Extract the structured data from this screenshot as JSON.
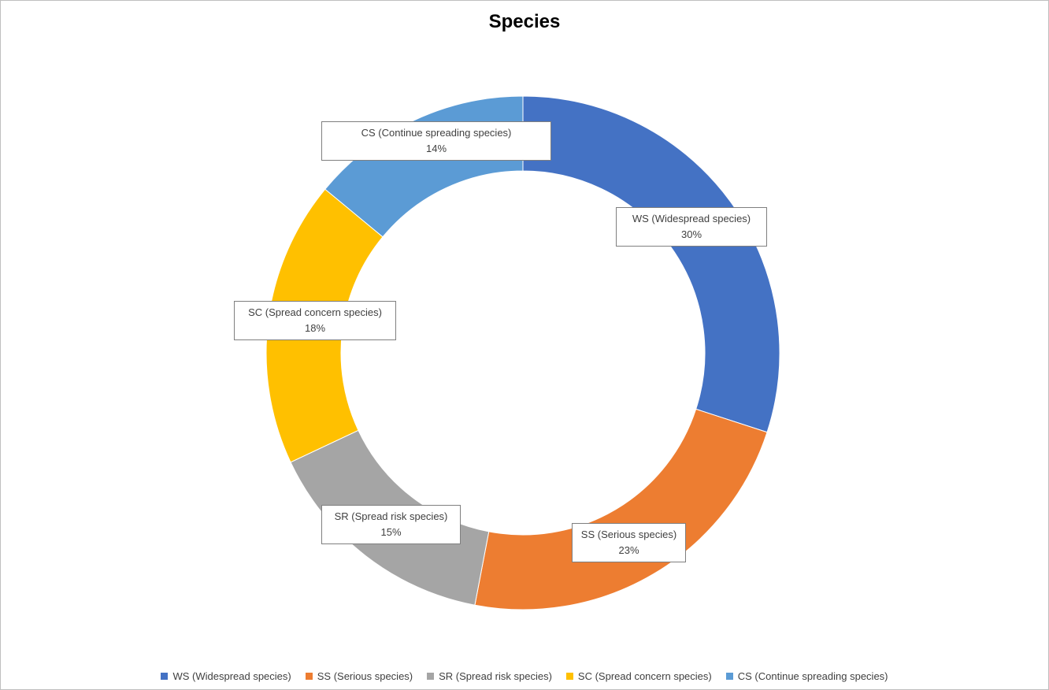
{
  "chart_data": {
    "type": "pie",
    "variant": "doughnut",
    "title": "Species",
    "legend_position": "bottom",
    "series": [
      {
        "name": "WS (Widespread species)",
        "value": 30,
        "label": "30%",
        "color": "#4472c4"
      },
      {
        "name": "SS (Serious species)",
        "value": 23,
        "label": "23%",
        "color": "#ed7d31"
      },
      {
        "name": "SR (Spread risk species)",
        "value": 15,
        "label": "15%",
        "color": "#a5a5a5"
      },
      {
        "name": "SC (Spread concern species)",
        "value": 18,
        "label": "18%",
        "color": "#ffc000"
      },
      {
        "name": "CS (Continue spreading species)",
        "value": 14,
        "label": "14%",
        "color": "#5b9bd5"
      }
    ],
    "legend_names": [
      "WS (Widespread species)",
      "SS (Serious species)",
      "SR (Spread risk species)",
      "SC (Spread concern species)",
      "CS (Continue spreading species)"
    ]
  }
}
